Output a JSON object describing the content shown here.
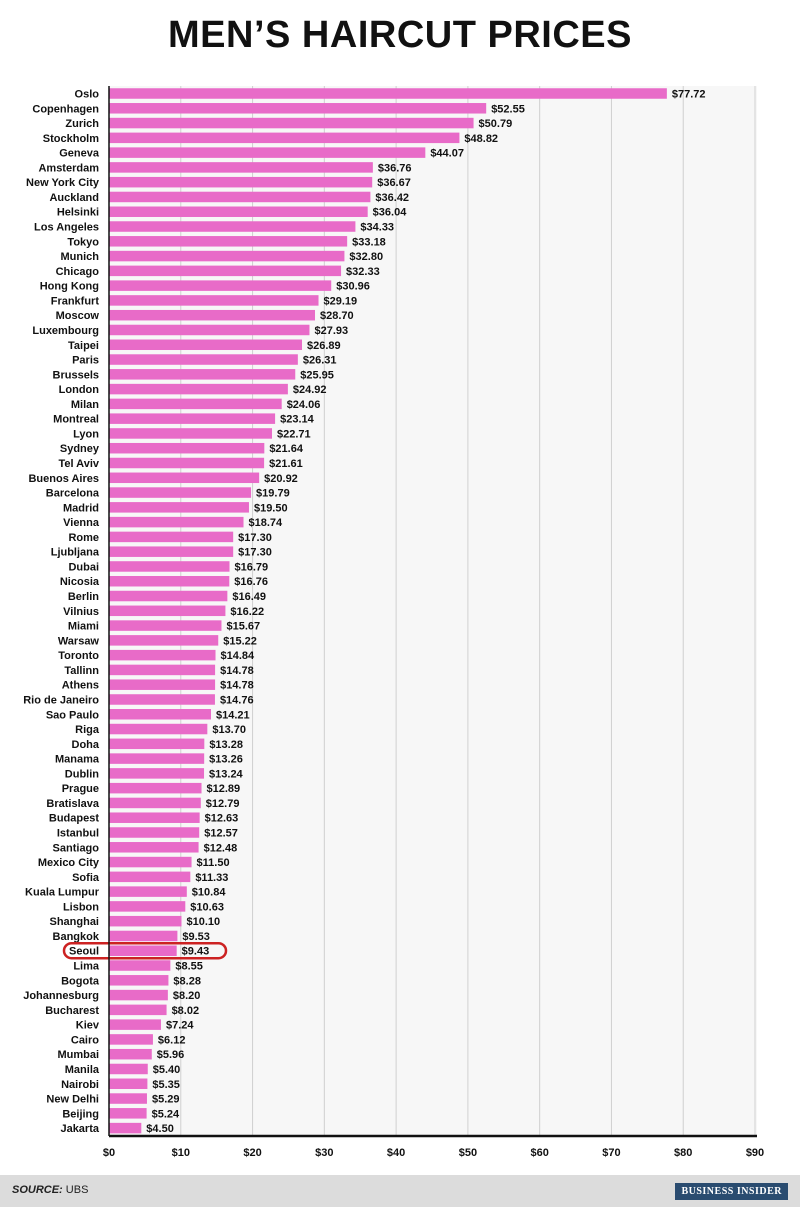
{
  "chart_data": {
    "type": "bar",
    "orientation": "horizontal",
    "title": "MEN’S HAIRCUT PRICES",
    "categories": [
      "Oslo",
      "Copenhagen",
      "Zurich",
      "Stockholm",
      "Geneva",
      "Amsterdam",
      "New York City",
      "Auckland",
      "Helsinki",
      "Los Angeles",
      "Tokyo",
      "Munich",
      "Chicago",
      "Hong Kong",
      "Frankfurt",
      "Moscow",
      "Luxembourg",
      "Taipei",
      "Paris",
      "Brussels",
      "London",
      "Milan",
      "Montreal",
      "Lyon",
      "Sydney",
      "Tel Aviv",
      "Buenos Aires",
      "Barcelona",
      "Madrid",
      "Vienna",
      "Rome",
      "Ljubljana",
      "Dubai",
      "Nicosia",
      "Berlin",
      "Vilnius",
      "Miami",
      "Warsaw",
      "Toronto",
      "Tallinn",
      "Athens",
      "Rio de Janeiro",
      "Sao Paulo",
      "Riga",
      "Doha",
      "Manama",
      "Dublin",
      "Prague",
      "Bratislava",
      "Budapest",
      "Istanbul",
      "Santiago",
      "Mexico City",
      "Sofia",
      "Kuala Lumpur",
      "Lisbon",
      "Shanghai",
      "Bangkok",
      "Seoul",
      "Lima",
      "Bogota",
      "Johannesburg",
      "Bucharest",
      "Kiev",
      "Cairo",
      "Mumbai",
      "Manila",
      "Nairobi",
      "New Delhi",
      "Beijing",
      "Jakarta"
    ],
    "values": [
      77.72,
      52.55,
      50.79,
      48.82,
      44.07,
      36.76,
      36.67,
      36.42,
      36.04,
      34.33,
      33.18,
      32.8,
      32.33,
      30.96,
      29.19,
      28.7,
      27.93,
      26.89,
      26.31,
      25.95,
      24.92,
      24.06,
      23.14,
      22.71,
      21.64,
      21.61,
      20.92,
      19.79,
      19.5,
      18.74,
      17.3,
      17.3,
      16.79,
      16.76,
      16.49,
      16.22,
      15.67,
      15.22,
      14.84,
      14.78,
      14.78,
      14.76,
      14.21,
      13.7,
      13.28,
      13.26,
      13.24,
      12.89,
      12.79,
      12.63,
      12.57,
      12.48,
      11.5,
      11.33,
      10.84,
      10.63,
      10.1,
      9.53,
      9.43,
      8.55,
      8.28,
      8.2,
      8.02,
      7.24,
      6.12,
      5.96,
      5.4,
      5.35,
      5.29,
      5.24,
      4.5
    ],
    "value_labels": [
      "$77.72",
      "$52.55",
      "$50.79",
      "$48.82",
      "$44.07",
      "$36.76",
      "$36.67",
      "$36.42",
      "$36.04",
      "$34.33",
      "$33.18",
      "$32.80",
      "$32.33",
      "$30.96",
      "$29.19",
      "$28.70",
      "$27.93",
      "$26.89",
      "$26.31",
      "$25.95",
      "$24.92",
      "$24.06",
      "$23.14",
      "$22.71",
      "$21.64",
      "$21.61",
      "$20.92",
      "$19.79",
      "$19.50",
      "$18.74",
      "$17.30",
      "$17.30",
      "$16.79",
      "$16.76",
      "$16.49",
      "$16.22",
      "$15.67",
      "$15.22",
      "$14.84",
      "$14.78",
      "$14.78",
      "$14.76",
      "$14.21",
      "$13.70",
      "$13.28",
      "$13.26",
      "$13.24",
      "$12.89",
      "$12.79",
      "$12.63",
      "$12.57",
      "$12.48",
      "$11.50",
      "$11.33",
      "$10.84",
      "$10.63",
      "$10.10",
      "$9.53",
      "$9.43",
      "$8.55",
      "$8.28",
      "$8.20",
      "$8.02",
      "$7.24",
      "$6.12",
      "$5.96",
      "$5.40",
      "$5.35",
      "$5.29",
      "$5.24",
      "$4.50"
    ],
    "xlim": [
      0,
      90
    ],
    "xticks": [
      0,
      10,
      20,
      30,
      40,
      50,
      60,
      70,
      80,
      90
    ],
    "xtick_labels": [
      "$0",
      "$10",
      "$20",
      "$30",
      "$40",
      "$50",
      "$60",
      "$70",
      "$80",
      "$90"
    ],
    "grid": "vertical",
    "highlight": "Seoul",
    "colors": {
      "bar": "#e86bc8",
      "grid": "#d0d0d0",
      "axis": "#111111",
      "highlight": "#cc2222",
      "background": "#f7f7f7"
    }
  },
  "footer": {
    "source_label": "SOURCE:",
    "source_text": " UBS",
    "brand": "BUSINESS INSIDER"
  }
}
